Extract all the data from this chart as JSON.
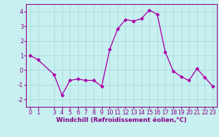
{
  "x": [
    0,
    1,
    3,
    4,
    5,
    6,
    7,
    8,
    9,
    10,
    11,
    12,
    13,
    14,
    15,
    16,
    17,
    18,
    19,
    20,
    21,
    22,
    23
  ],
  "y": [
    1.0,
    0.7,
    -0.3,
    -1.7,
    -0.7,
    -0.6,
    -0.7,
    -0.7,
    -1.1,
    1.4,
    2.8,
    3.45,
    3.35,
    3.5,
    4.1,
    3.8,
    1.25,
    -0.05,
    -0.45,
    -0.7,
    0.1,
    -0.5,
    -1.1
  ],
  "line_color": "#aa00aa",
  "marker": "D",
  "marker_size": 2.5,
  "bg_color": "#c8f0f0",
  "grid_color": "#aadddd",
  "xlabel": "Windchill (Refroidissement éolien,°C)",
  "xlabel_fontsize": 6.5,
  "tick_fontsize": 6.0,
  "ylim": [
    -2.5,
    4.5
  ],
  "yticks": [
    -2,
    -1,
    0,
    1,
    2,
    3,
    4
  ],
  "xticks": [
    0,
    1,
    3,
    4,
    5,
    6,
    7,
    8,
    9,
    10,
    11,
    12,
    13,
    14,
    15,
    16,
    17,
    18,
    19,
    20,
    21,
    22,
    23
  ],
  "linewidth": 1.0,
  "xlim": [
    -0.5,
    23.5
  ]
}
